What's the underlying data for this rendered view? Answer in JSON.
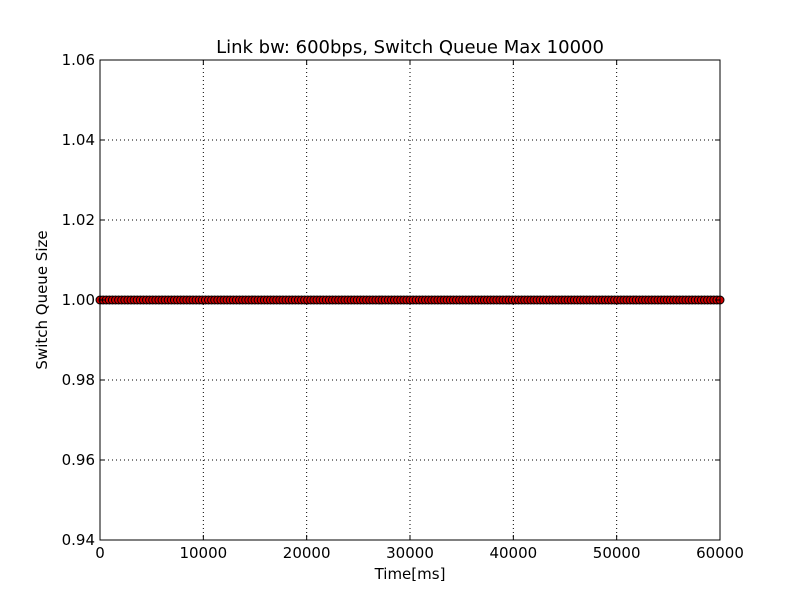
{
  "chart_data": {
    "type": "scatter",
    "title": "Link bw: 600bps, Switch Queue Max 10000",
    "xlabel": "Time[ms]",
    "ylabel": "Switch Queue Size",
    "xlim": [
      0,
      60000
    ],
    "ylim": [
      0.94,
      1.06
    ],
    "xticks": [
      0,
      10000,
      20000,
      30000,
      40000,
      50000,
      60000
    ],
    "xtick_labels": [
      "0",
      "10000",
      "20000",
      "30000",
      "40000",
      "50000",
      "60000"
    ],
    "yticks": [
      0.94,
      0.96,
      0.98,
      1.0,
      1.02,
      1.04,
      1.06
    ],
    "ytick_labels": [
      "0.94",
      "0.96",
      "0.98",
      "1.00",
      "1.02",
      "1.04",
      "1.06"
    ],
    "grid": true,
    "series": [
      {
        "x_range": [
          0,
          60000
        ],
        "y": 1.0,
        "marker": "circle",
        "fill_color": "#cc0000",
        "edge_color": "#000000"
      }
    ]
  }
}
